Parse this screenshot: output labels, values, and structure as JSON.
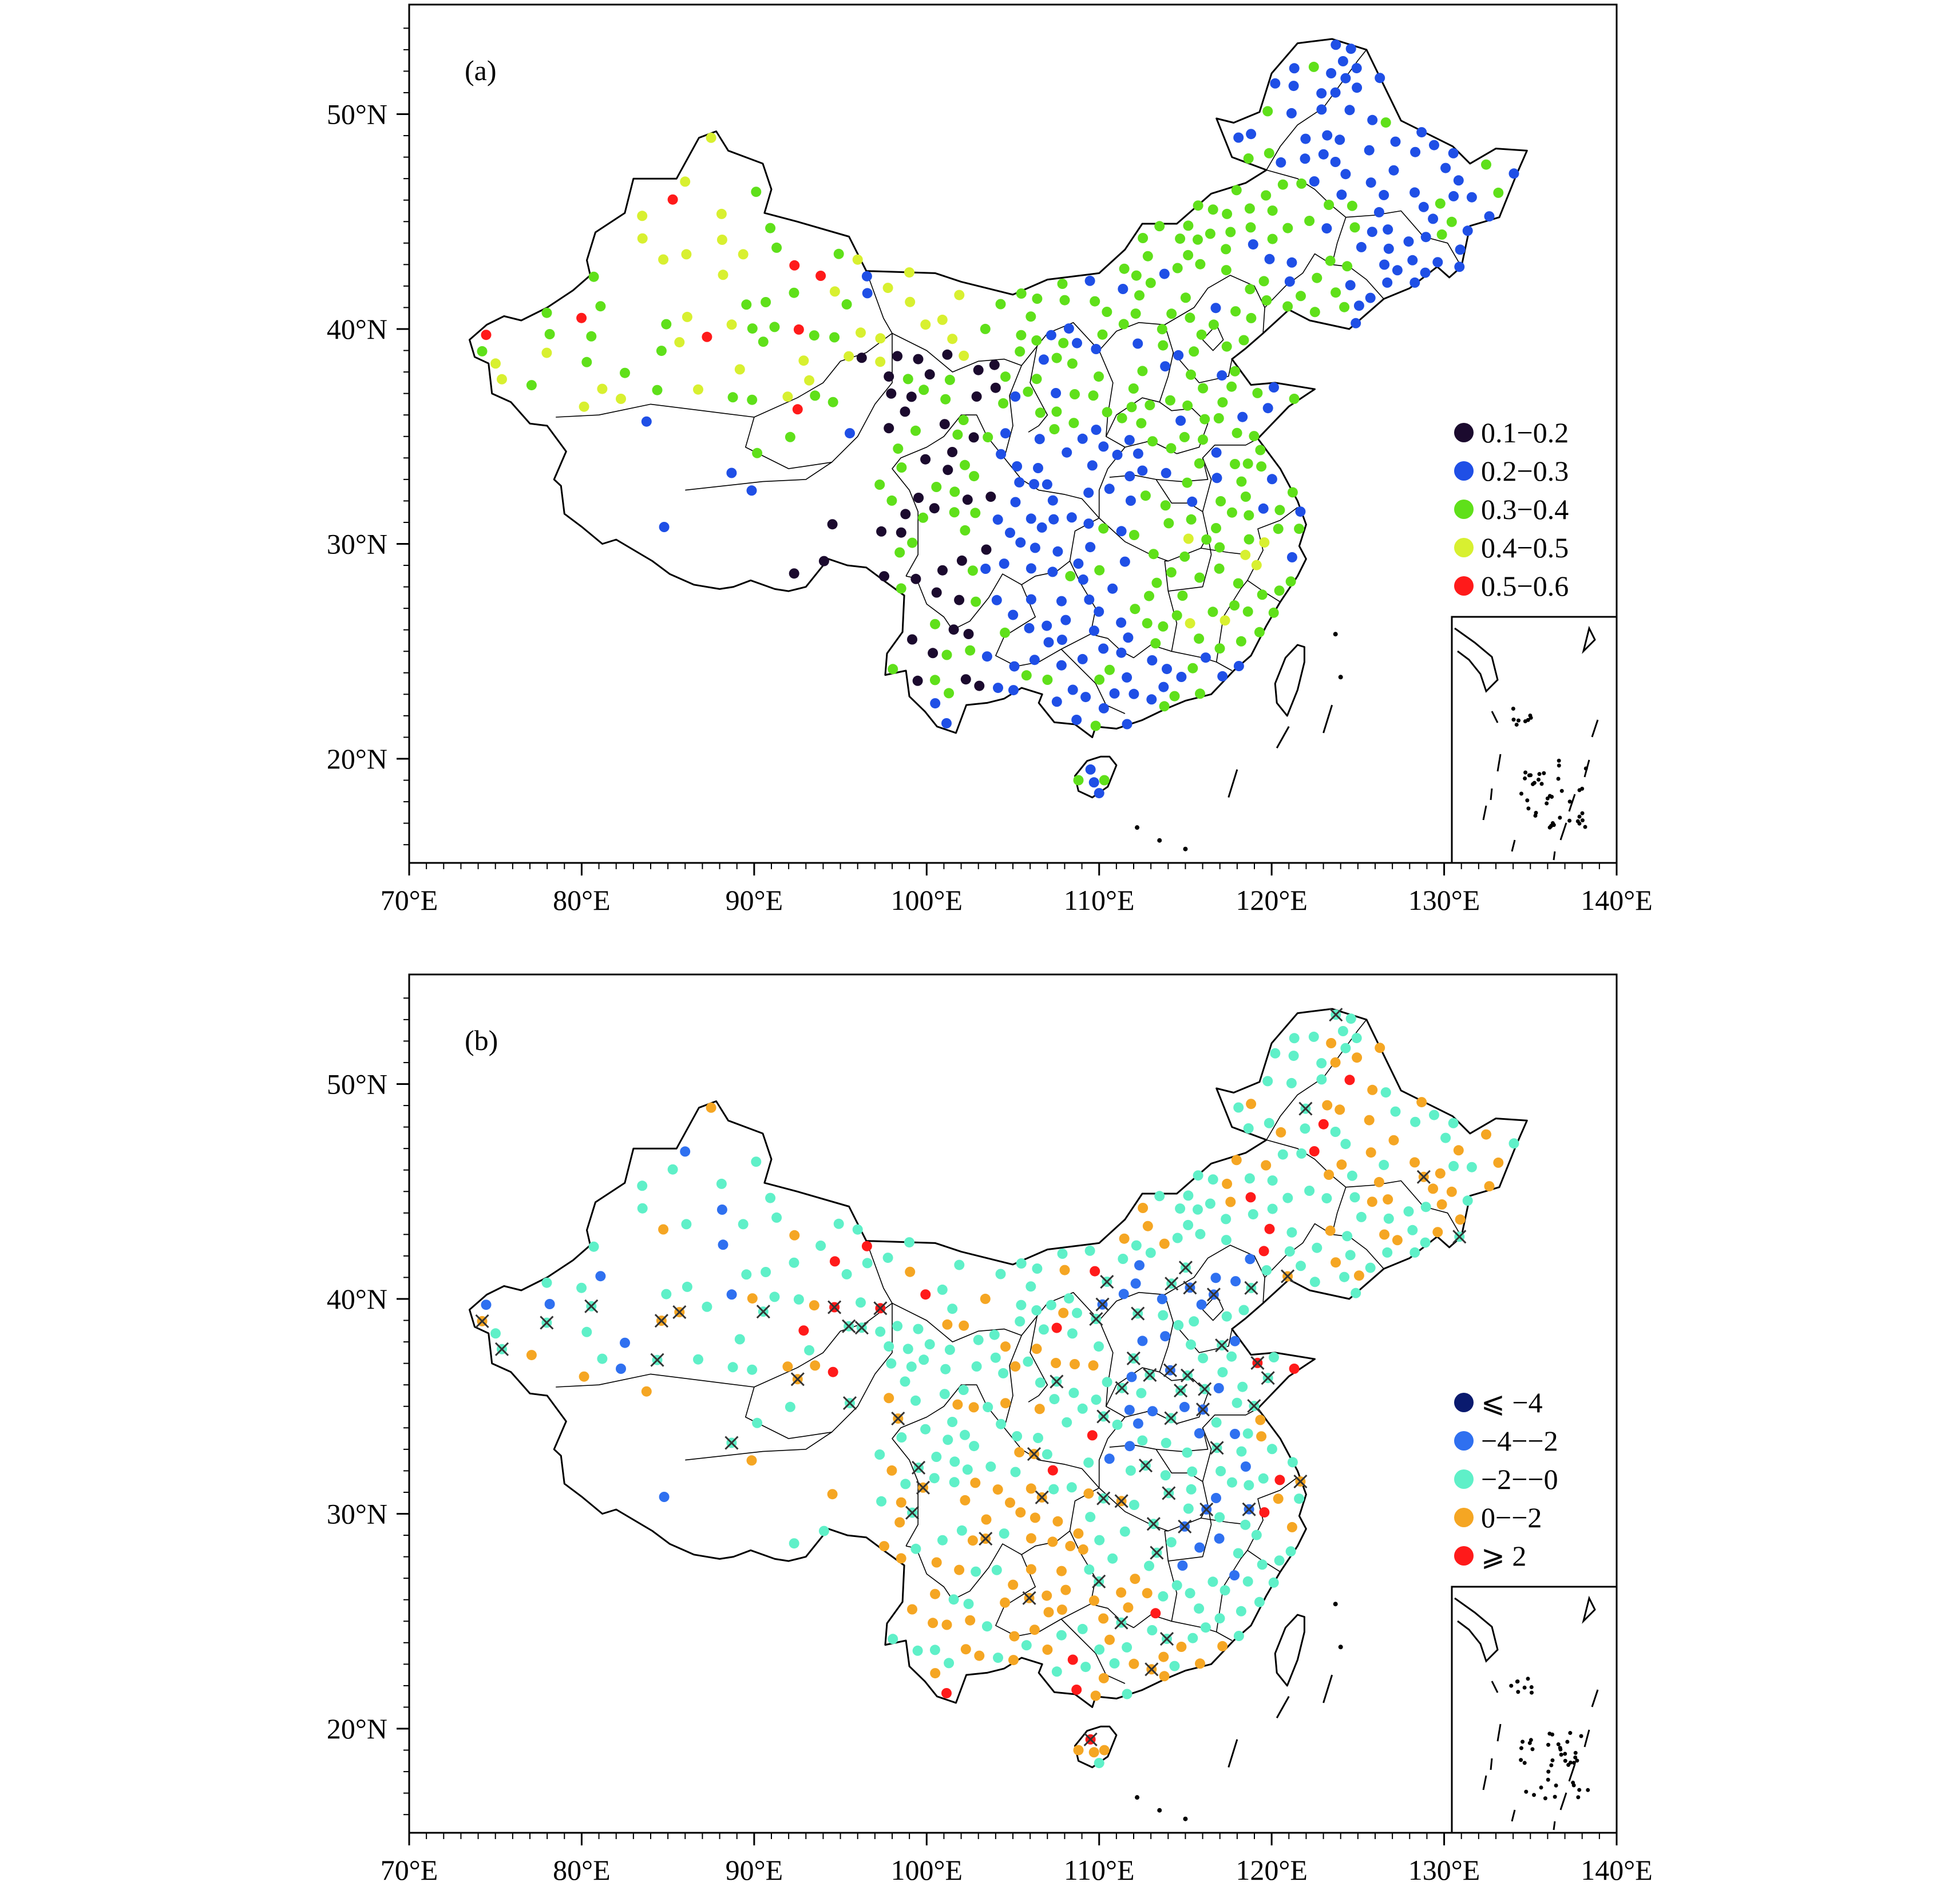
{
  "figure": {
    "panels": [
      {
        "id": "a",
        "tag": "(a)",
        "legend": [
          {
            "label": "0.1−0.2",
            "color": "#1b0a2e"
          },
          {
            "label": "0.2−0.3",
            "color": "#1f4fe6"
          },
          {
            "label": "0.3−0.4",
            "color": "#5fe01a"
          },
          {
            "label": "0.4−0.5",
            "color": "#d8f030"
          },
          {
            "label": "0.5−0.6",
            "color": "#ff1a1a"
          }
        ]
      },
      {
        "id": "b",
        "tag": "(b)",
        "legend": [
          {
            "label": "⩽ −4",
            "color": "#0a1a6e"
          },
          {
            "label": "−4−−2",
            "color": "#2f70f0"
          },
          {
            "label": "−2−−0",
            "color": "#5ff0c8"
          },
          {
            "label": "0−−2",
            "color": "#f5a623"
          },
          {
            "label": "⩾ 2",
            "color": "#ff1a1a"
          }
        ]
      }
    ],
    "x_ticks": [
      "70°E",
      "80°E",
      "90°E",
      "100°E",
      "110°E",
      "120°E",
      "130°E",
      "140°E"
    ],
    "y_ticks": [
      "20°N",
      "30°N",
      "40°N",
      "50°N"
    ],
    "x_tick_values": [
      70,
      80,
      90,
      100,
      110,
      120,
      130,
      140
    ],
    "y_tick_values": [
      20,
      30,
      40,
      50
    ],
    "lon_range": [
      70,
      140
    ],
    "lat_range": [
      15,
      55
    ]
  }
}
